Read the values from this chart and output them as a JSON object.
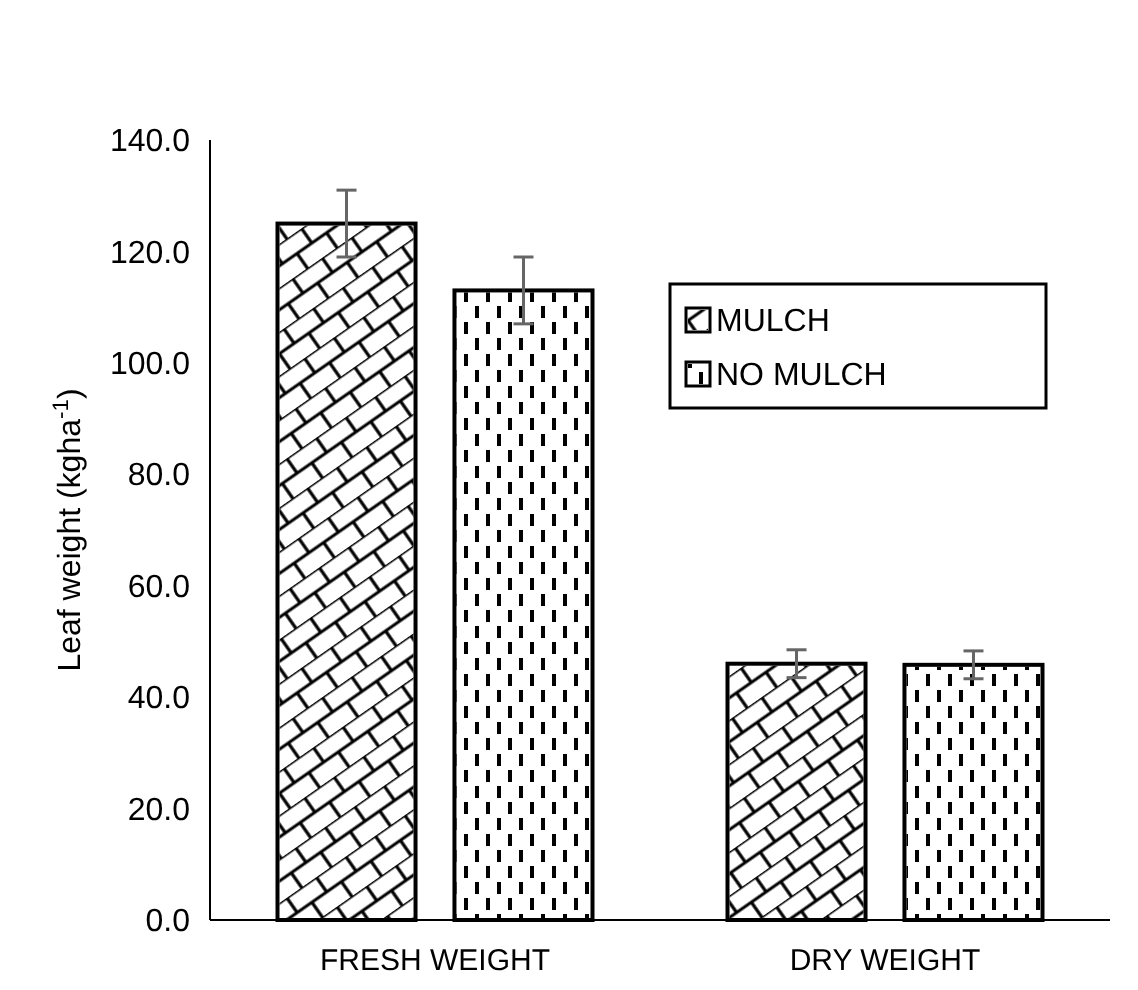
{
  "chart_data": {
    "type": "bar",
    "ylabel": "Leaf weight (kgha$^{-1}$)",
    "categories": [
      "FRESH WEIGHT",
      "DRY WEIGHT"
    ],
    "series": [
      {
        "name": "MULCH",
        "color": "#ffffff",
        "values": [
          125,
          46
        ],
        "errors": [
          6,
          2.5
        ]
      },
      {
        "name": "NO MULCH",
        "color": "#ffffff",
        "values": [
          113,
          45.8
        ],
        "errors": [
          6,
          2.5
        ]
      }
    ],
    "ylim": [
      0,
      140
    ],
    "yticks": [
      {
        "value": 0,
        "label": "0.0"
      },
      {
        "value": 20,
        "label": "20.0"
      },
      {
        "value": 40,
        "label": "40.0"
      },
      {
        "value": 60,
        "label": "60.0"
      },
      {
        "value": 80,
        "label": "80.0"
      },
      {
        "value": 100,
        "label": "100.0"
      },
      {
        "value": 120,
        "label": "120.0"
      },
      {
        "value": 140,
        "label": "140.0"
      }
    ],
    "grid": false,
    "legend": "right"
  }
}
